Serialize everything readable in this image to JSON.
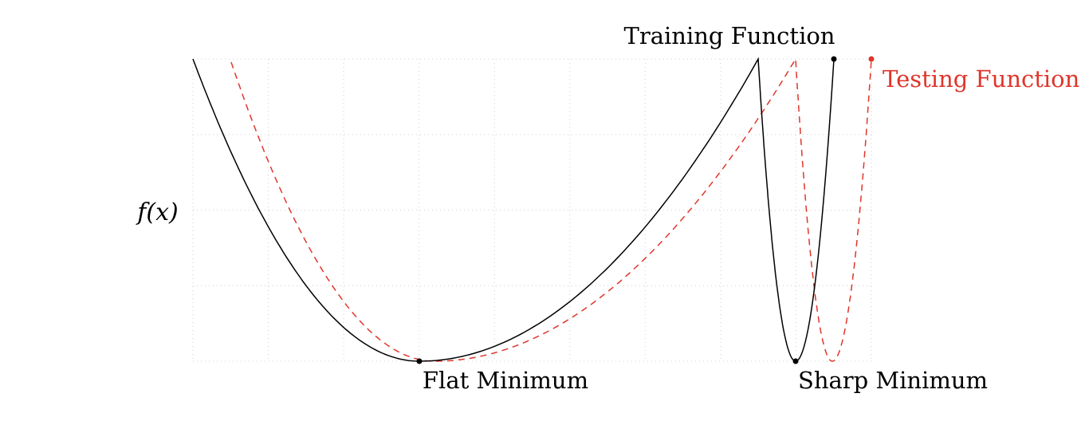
{
  "diagram": {
    "y_axis_label": "f(x)",
    "grid": true,
    "curves": [
      {
        "name": "Training Function",
        "style": "solid",
        "color": "#000000"
      },
      {
        "name": "Testing Function",
        "style": "dashed",
        "color": "#e0352b"
      }
    ],
    "minima": [
      {
        "label": "Flat Minimum"
      },
      {
        "label": "Sharp Minimum"
      }
    ]
  }
}
